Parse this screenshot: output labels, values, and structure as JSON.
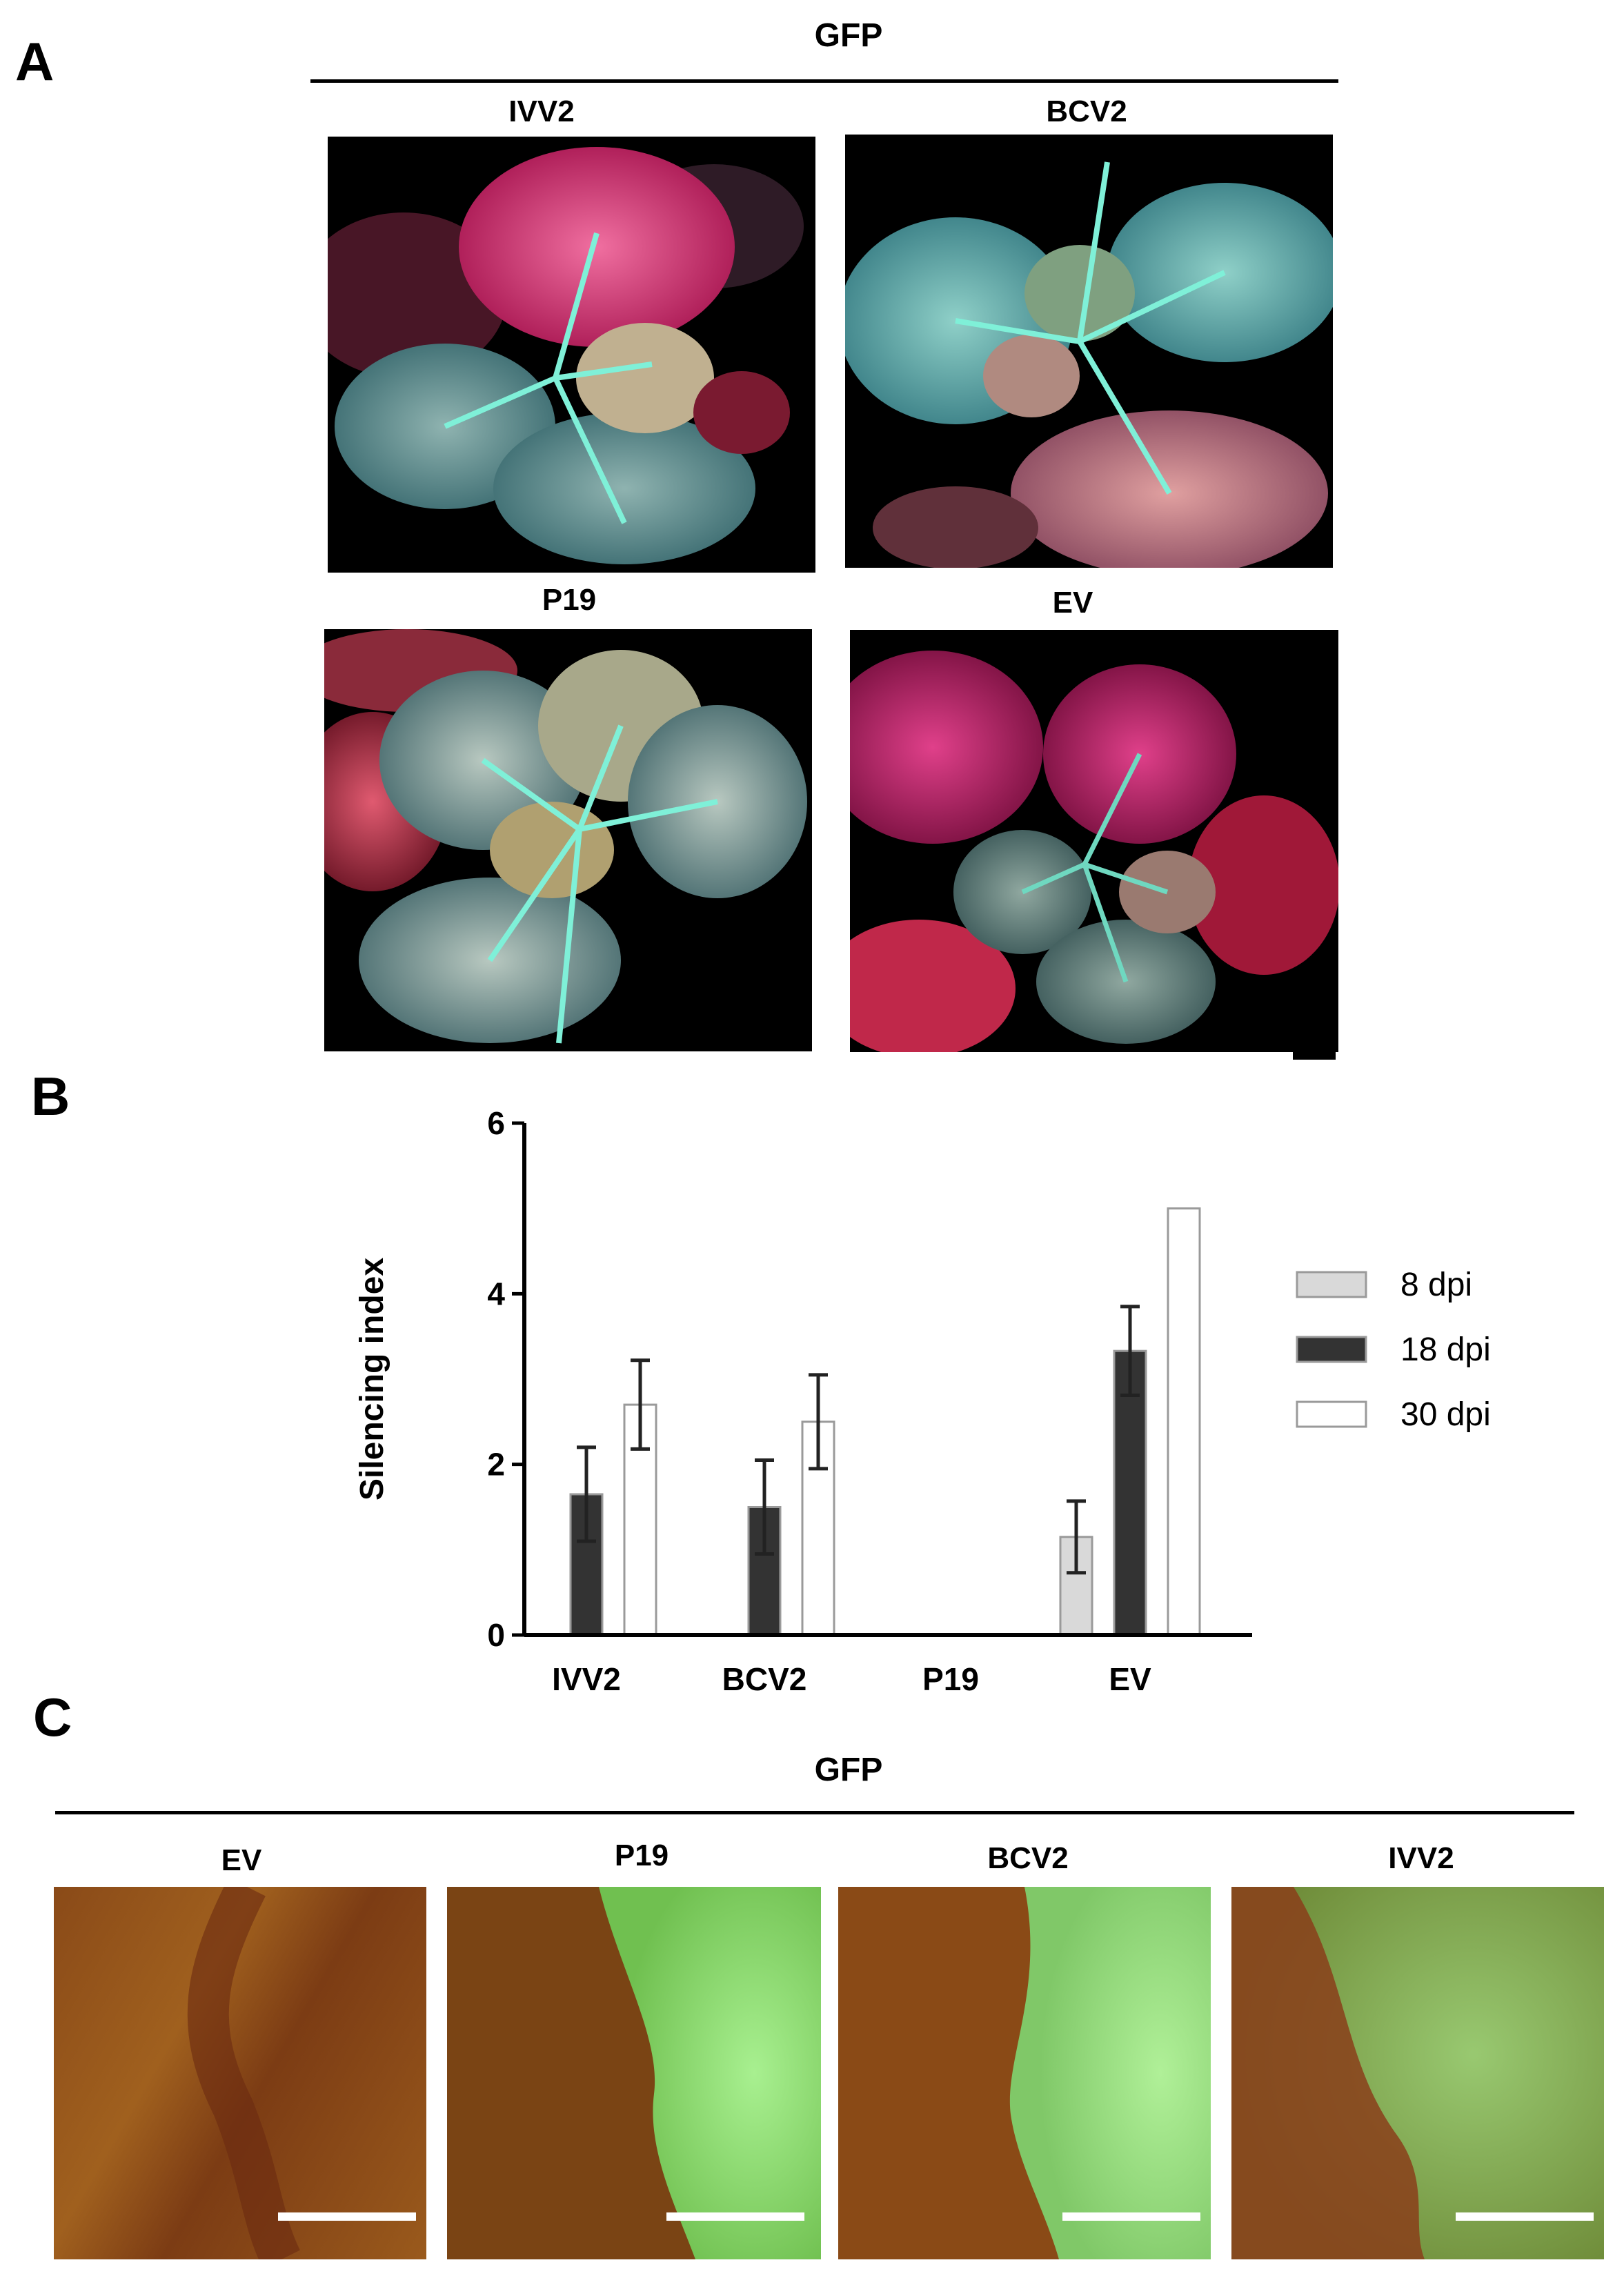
{
  "panel_a": {
    "letter": "A",
    "header": "GFP",
    "images": [
      {
        "label": "IVV2",
        "glow": "magenta-upper"
      },
      {
        "label": "BCV2",
        "glow": "cyan"
      },
      {
        "label": "P19",
        "glow": "cyan-red"
      },
      {
        "label": "EV",
        "glow": "red"
      }
    ]
  },
  "panel_b": {
    "letter": "B"
  },
  "chart_data": {
    "type": "bar",
    "categories": [
      "IVV2",
      "BCV2",
      "P19",
      "EV"
    ],
    "series": [
      {
        "name": "8 dpi",
        "values": [
          0,
          0,
          0,
          1.15
        ],
        "errors": [
          0,
          0,
          0,
          0.42
        ],
        "color": "#d9d9d9"
      },
      {
        "name": "18 dpi",
        "values": [
          1.65,
          1.5,
          0,
          3.33
        ],
        "errors": [
          0.55,
          0.55,
          0,
          0.52
        ],
        "color": "#333333"
      },
      {
        "name": "30 dpi",
        "values": [
          2.7,
          2.5,
          0,
          5.0
        ],
        "errors": [
          0.52,
          0.55,
          0,
          0
        ],
        "color": "#ffffff"
      }
    ],
    "ylabel": "Silencing index",
    "xlabel": "",
    "ylim": [
      0,
      6
    ],
    "yticks": [
      0,
      2,
      4,
      6
    ],
    "legend": "right",
    "grid": false
  },
  "panel_c": {
    "letter": "C",
    "header": "GFP",
    "images": [
      {
        "label": "EV"
      },
      {
        "label": "P19"
      },
      {
        "label": "BCV2"
      },
      {
        "label": "IVV2"
      }
    ]
  }
}
